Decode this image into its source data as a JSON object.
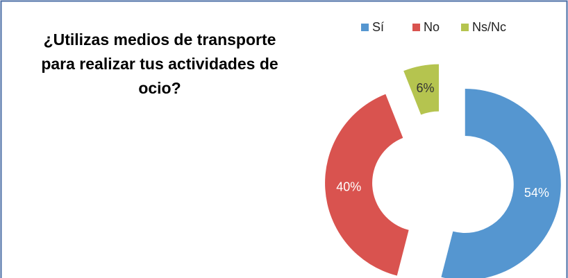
{
  "chart_data": {
    "type": "donut",
    "title": "¿Utilizas medios de transporte para realizar tus actividades de ocio?",
    "categories": [
      "Sí",
      "No",
      "Ns/Nc"
    ],
    "values": [
      54,
      40,
      6
    ],
    "value_labels": [
      "54%",
      "40%",
      "6%"
    ],
    "colors": [
      "#5596d0",
      "#d9534f",
      "#b5c44f"
    ],
    "legend": "top"
  }
}
